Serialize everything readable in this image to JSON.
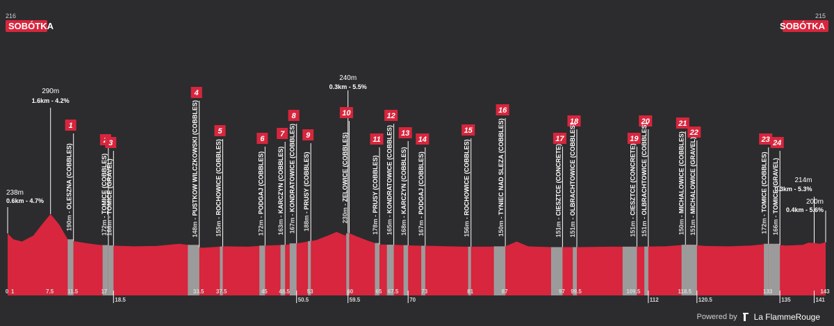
{
  "header": {
    "start_km": "216",
    "start_town": "SOBÓTKA",
    "finish_km": "215",
    "finish_town": "SOBÓTKA"
  },
  "footer": {
    "powered_by": "Powered by",
    "brand": "La FlammeRouge"
  },
  "colors": {
    "background": "#2c2c2e",
    "profile_fill": "#d7263d",
    "sector_fill": "#9b9b9b",
    "label_box": "#d7263d",
    "text": "#ffffff"
  },
  "climbs": [
    {
      "km": 0,
      "elev": "238m",
      "detail": "0.6km - 4.7%"
    },
    {
      "km": 7.5,
      "elev": "290m",
      "detail": "1.6km - 4.2%"
    },
    {
      "km": 59.5,
      "elev": "240m",
      "detail": "0.3km - 5.5%"
    },
    {
      "km": 141,
      "elev": "214m",
      "detail": "0.3km - 5.3%"
    },
    {
      "km": 143,
      "elev": "200m",
      "detail": "0.4km - 5.6%"
    }
  ],
  "chart_data": {
    "type": "area",
    "title": "",
    "xlabel": "",
    "ylabel": "",
    "xlim": [
      0,
      143
    ],
    "ylim": [
      0,
      300
    ],
    "x_ticks": [
      {
        "km": 0,
        "label": "0",
        "row": "top"
      },
      {
        "km": 1,
        "label": "1",
        "row": "top"
      },
      {
        "km": 7.5,
        "label": "7.5",
        "row": "top"
      },
      {
        "km": 11.5,
        "label": "11.5",
        "row": "top"
      },
      {
        "km": 17,
        "label": "17",
        "row": "top"
      },
      {
        "km": 18.5,
        "label": "18.5",
        "row": "bottom"
      },
      {
        "km": 33.5,
        "label": "33.5",
        "row": "top"
      },
      {
        "km": 37.5,
        "label": "37.5",
        "row": "top"
      },
      {
        "km": 45,
        "label": "45",
        "row": "top"
      },
      {
        "km": 48.5,
        "label": "48.5",
        "row": "top"
      },
      {
        "km": 50.5,
        "label": "50.5",
        "row": "bottom"
      },
      {
        "km": 53,
        "label": "53",
        "row": "top"
      },
      {
        "km": 59.5,
        "label": "59.5",
        "row": "bottom"
      },
      {
        "km": 60,
        "label": "60",
        "row": "top"
      },
      {
        "km": 65,
        "label": "65",
        "row": "top"
      },
      {
        "km": 67.5,
        "label": "67.5",
        "row": "top"
      },
      {
        "km": 70,
        "label": "70",
        "row": "bottom"
      },
      {
        "km": 73,
        "label": "73",
        "row": "top"
      },
      {
        "km": 81,
        "label": "81",
        "row": "top"
      },
      {
        "km": 87,
        "label": "87",
        "row": "top"
      },
      {
        "km": 97,
        "label": "97",
        "row": "top"
      },
      {
        "km": 99.5,
        "label": "99.5",
        "row": "top"
      },
      {
        "km": 109.5,
        "label": "109.5",
        "row": "top"
      },
      {
        "km": 112,
        "label": "112",
        "row": "bottom"
      },
      {
        "km": 118.5,
        "label": "118.5",
        "row": "top"
      },
      {
        "km": 120.5,
        "label": "120.5",
        "row": "bottom"
      },
      {
        "km": 133,
        "label": "133",
        "row": "top"
      },
      {
        "km": 135,
        "label": "135",
        "row": "bottom"
      },
      {
        "km": 141,
        "label": "141",
        "row": "bottom"
      },
      {
        "km": 143,
        "label": "143",
        "row": "top"
      }
    ],
    "profile": [
      {
        "km": 0,
        "elev": 238
      },
      {
        "km": 1,
        "elev": 222
      },
      {
        "km": 2.5,
        "elev": 216
      },
      {
        "km": 4.5,
        "elev": 232
      },
      {
        "km": 6,
        "elev": 262
      },
      {
        "km": 7.5,
        "elev": 290
      },
      {
        "km": 9,
        "elev": 262
      },
      {
        "km": 10.5,
        "elev": 222
      },
      {
        "km": 12,
        "elev": 216
      },
      {
        "km": 14,
        "elev": 211
      },
      {
        "km": 16,
        "elev": 207
      },
      {
        "km": 18,
        "elev": 205
      },
      {
        "km": 22,
        "elev": 203
      },
      {
        "km": 26,
        "elev": 204
      },
      {
        "km": 30,
        "elev": 210
      },
      {
        "km": 32,
        "elev": 206
      },
      {
        "km": 34,
        "elev": 199
      },
      {
        "km": 38,
        "elev": 203
      },
      {
        "km": 42,
        "elev": 202
      },
      {
        "km": 45,
        "elev": 205
      },
      {
        "km": 48.5,
        "elev": 207
      },
      {
        "km": 51,
        "elev": 212
      },
      {
        "km": 54,
        "elev": 220
      },
      {
        "km": 56,
        "elev": 232
      },
      {
        "km": 57.5,
        "elev": 242
      },
      {
        "km": 59,
        "elev": 232
      },
      {
        "km": 59.5,
        "elev": 240
      },
      {
        "km": 61,
        "elev": 230
      },
      {
        "km": 63,
        "elev": 218
      },
      {
        "km": 65,
        "elev": 208
      },
      {
        "km": 68,
        "elev": 207
      },
      {
        "km": 71,
        "elev": 205
      },
      {
        "km": 75,
        "elev": 204
      },
      {
        "km": 80,
        "elev": 202
      },
      {
        "km": 84,
        "elev": 202
      },
      {
        "km": 87,
        "elev": 203
      },
      {
        "km": 89,
        "elev": 216
      },
      {
        "km": 91,
        "elev": 203
      },
      {
        "km": 95,
        "elev": 201
      },
      {
        "km": 100,
        "elev": 201
      },
      {
        "km": 105,
        "elev": 202
      },
      {
        "km": 110,
        "elev": 202
      },
      {
        "km": 115,
        "elev": 203
      },
      {
        "km": 119,
        "elev": 208
      },
      {
        "km": 122,
        "elev": 204
      },
      {
        "km": 126,
        "elev": 203
      },
      {
        "km": 130,
        "elev": 205
      },
      {
        "km": 133,
        "elev": 210
      },
      {
        "km": 136,
        "elev": 205
      },
      {
        "km": 139,
        "elev": 207
      },
      {
        "km": 140,
        "elev": 213
      },
      {
        "km": 141,
        "elev": 212
      },
      {
        "km": 142,
        "elev": 210
      },
      {
        "km": 143,
        "elev": 214
      }
    ],
    "sectors": [
      {
        "num": "1",
        "name": "OLESZNA (COBBLES)",
        "elev": "190m",
        "start": 10.5,
        "end": 11.5
      },
      {
        "num": "2",
        "name": "TOMICE (COBBLES)",
        "elev": "172m",
        "start": 16.6,
        "end": 17.6
      },
      {
        "num": "3",
        "name": "TOMICE (GRAVEL)",
        "elev": "166m",
        "start": 17.6,
        "end": 18.5
      },
      {
        "num": "4",
        "name": "PUSTKOW WILCZKOWSKI (COBBLES)",
        "elev": "148m",
        "start": 31.5,
        "end": 33.5
      },
      {
        "num": "5",
        "name": "ROCHOWICE (COBBLES)",
        "elev": "155m",
        "start": 37.1,
        "end": 37.6
      },
      {
        "num": "6",
        "name": "PODGAJ (COBBLES)",
        "elev": "172m",
        "start": 44,
        "end": 45
      },
      {
        "num": "7",
        "name": "KARCZYN (COBBLES)",
        "elev": "163m",
        "start": 47.7,
        "end": 48.5
      },
      {
        "num": "8",
        "name": "KONDRATOWICE (COBBLES)",
        "elev": "167m",
        "start": 49.3,
        "end": 50.5
      },
      {
        "num": "9",
        "name": "PRUSY (COBBLES)",
        "elev": "188m",
        "start": 52.5,
        "end": 53
      },
      {
        "num": "10",
        "name": "ZELOWICE (COBBLES)",
        "elev": "230m",
        "start": 59.2,
        "end": 59.7
      },
      {
        "num": "11",
        "name": "PRUSY (COBBLES)",
        "elev": "178m",
        "start": 64.2,
        "end": 65
      },
      {
        "num": "12",
        "name": "KONDRATOWICE (COBBLES)",
        "elev": "165m",
        "start": 66.3,
        "end": 67.5
      },
      {
        "num": "13",
        "name": "KARCZYN (COBBLES)",
        "elev": "168m",
        "start": 69.2,
        "end": 70
      },
      {
        "num": "14",
        "name": "PODGAJ (COBBLES)",
        "elev": "167m",
        "start": 72.3,
        "end": 73
      },
      {
        "num": "15",
        "name": "ROCHOWICE (COBBLES)",
        "elev": "156m",
        "start": 80.5,
        "end": 81
      },
      {
        "num": "16",
        "name": "TYNIEC NAD SLEZA (COBBLES)",
        "elev": "150m",
        "start": 85,
        "end": 87
      },
      {
        "num": "17",
        "name": "CIESZTCE (CONCRETE)",
        "elev": "151m",
        "start": 95,
        "end": 97
      },
      {
        "num": "18",
        "name": "OLBRACHTOWICE (COBBLES)",
        "elev": "151m",
        "start": 98.8,
        "end": 99.5
      },
      {
        "num": "19",
        "name": "CIESZTCE (CONCRETE)",
        "elev": "151m",
        "start": 107.5,
        "end": 110
      },
      {
        "num": "20",
        "name": "OLBRACHTOWICE (COBBLES)",
        "elev": "151m",
        "start": 111.3,
        "end": 112
      },
      {
        "num": "21",
        "name": "MICHALOWICE (COBBLES)",
        "elev": "150m",
        "start": 117.8,
        "end": 118.5
      },
      {
        "num": "22",
        "name": "MICHALOWICE (GRAVEL)",
        "elev": "151m",
        "start": 118.5,
        "end": 120.5
      },
      {
        "num": "23",
        "name": "TOMICE (COBBLES)",
        "elev": "172m",
        "start": 132.2,
        "end": 133
      },
      {
        "num": "24",
        "name": "TOMICE (GRAVEL)",
        "elev": "166m",
        "start": 133,
        "end": 135
      }
    ]
  }
}
